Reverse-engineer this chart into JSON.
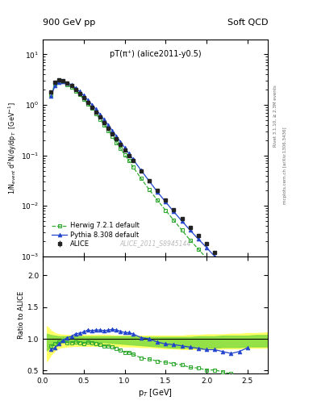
{
  "title_left": "900 GeV pp",
  "title_right": "Soft QCD",
  "plot_title": "pT(π⁺) (alice2011-y0.5)",
  "watermark": "ALICE_2011_S8945144",
  "right_label_top": "Rivet 3.1.10, ≥ 2.3M events",
  "right_label_bottom": "mcplots.cern.ch [arXiv:1306.3436]",
  "xlabel": "p$_{T}$ [GeV]",
  "ylabel_main": "1/N$_{event}$ d$^{2}$N/dy/dp$_{T}$  [GeV$^{-1}$]",
  "ylabel_ratio": "Ratio to ALICE",
  "ylim_main_log": [
    0.001,
    20
  ],
  "ylim_ratio": [
    0.45,
    2.3
  ],
  "ratio_yticks": [
    0.5,
    1.0,
    1.5,
    2.0
  ],
  "xlim": [
    0.0,
    2.75
  ],
  "alice_color": "#222222",
  "herwig_color": "#33aa33",
  "pythia_color": "#2244cc",
  "bg_color": "#ffffff",
  "alice_pt": [
    0.1,
    0.15,
    0.2,
    0.25,
    0.3,
    0.35,
    0.4,
    0.45,
    0.5,
    0.55,
    0.6,
    0.65,
    0.7,
    0.75,
    0.8,
    0.85,
    0.9,
    0.95,
    1.0,
    1.05,
    1.1,
    1.2,
    1.3,
    1.4,
    1.5,
    1.6,
    1.7,
    1.8,
    1.9,
    2.0,
    2.1,
    2.2,
    2.3,
    2.4,
    2.5
  ],
  "alice_val": [
    1.8,
    2.8,
    3.1,
    3.0,
    2.7,
    2.4,
    2.0,
    1.7,
    1.4,
    1.1,
    0.9,
    0.72,
    0.57,
    0.45,
    0.35,
    0.27,
    0.21,
    0.165,
    0.13,
    0.1,
    0.079,
    0.05,
    0.031,
    0.02,
    0.013,
    0.0085,
    0.0056,
    0.0038,
    0.0026,
    0.0018,
    0.0012,
    0.00085,
    0.0006,
    0.00043,
    0.0003
  ],
  "alice_err": [
    0.15,
    0.2,
    0.2,
    0.2,
    0.15,
    0.12,
    0.1,
    0.08,
    0.07,
    0.055,
    0.045,
    0.036,
    0.028,
    0.022,
    0.017,
    0.013,
    0.01,
    0.008,
    0.006,
    0.005,
    0.004,
    0.0025,
    0.0016,
    0.001,
    0.0007,
    0.0004,
    0.0003,
    0.0002,
    0.00014,
    0.0001,
    7e-05,
    5e-05,
    3.5e-05,
    2.5e-05,
    1.8e-05
  ],
  "herwig_pt": [
    0.1,
    0.15,
    0.2,
    0.25,
    0.3,
    0.35,
    0.4,
    0.45,
    0.5,
    0.55,
    0.6,
    0.65,
    0.7,
    0.75,
    0.8,
    0.85,
    0.9,
    0.95,
    1.0,
    1.05,
    1.1,
    1.2,
    1.3,
    1.4,
    1.5,
    1.6,
    1.7,
    1.8,
    1.9,
    2.0,
    2.1,
    2.2,
    2.3,
    2.4,
    2.5,
    2.6
  ],
  "herwig_val": [
    1.6,
    2.6,
    2.95,
    2.9,
    2.55,
    2.25,
    1.9,
    1.6,
    1.3,
    1.05,
    0.85,
    0.67,
    0.52,
    0.4,
    0.31,
    0.235,
    0.178,
    0.136,
    0.103,
    0.079,
    0.06,
    0.035,
    0.021,
    0.013,
    0.0082,
    0.0052,
    0.0033,
    0.0021,
    0.0014,
    0.00092,
    0.00061,
    0.00041,
    0.00027,
    0.00018,
    0.00012,
    8e-05
  ],
  "pythia_pt": [
    0.1,
    0.15,
    0.2,
    0.25,
    0.3,
    0.35,
    0.4,
    0.45,
    0.5,
    0.55,
    0.6,
    0.65,
    0.7,
    0.75,
    0.8,
    0.85,
    0.9,
    0.95,
    1.0,
    1.05,
    1.1,
    1.2,
    1.3,
    1.4,
    1.5,
    1.6,
    1.7,
    1.8,
    1.9,
    2.0,
    2.1,
    2.2,
    2.3,
    2.4,
    2.5
  ],
  "pythia_val": [
    1.5,
    2.4,
    2.85,
    2.95,
    2.75,
    2.5,
    2.15,
    1.85,
    1.55,
    1.25,
    1.02,
    0.82,
    0.65,
    0.51,
    0.4,
    0.31,
    0.24,
    0.185,
    0.143,
    0.11,
    0.085,
    0.051,
    0.031,
    0.019,
    0.012,
    0.0077,
    0.005,
    0.0033,
    0.0022,
    0.0015,
    0.001,
    0.00068,
    0.00046,
    0.00031,
    0.00021
  ],
  "herwig_ratio": [
    0.89,
    0.93,
    0.95,
    0.97,
    0.94,
    0.94,
    0.95,
    0.94,
    0.93,
    0.95,
    0.94,
    0.93,
    0.91,
    0.89,
    0.89,
    0.87,
    0.85,
    0.82,
    0.79,
    0.79,
    0.76,
    0.7,
    0.68,
    0.65,
    0.63,
    0.61,
    0.59,
    0.55,
    0.54,
    0.51,
    0.51,
    0.48,
    0.45,
    0.42,
    0.4,
    0.38
  ],
  "pythia_ratio": [
    0.83,
    0.86,
    0.92,
    0.98,
    1.02,
    1.04,
    1.08,
    1.09,
    1.11,
    1.14,
    1.13,
    1.14,
    1.14,
    1.13,
    1.14,
    1.15,
    1.14,
    1.12,
    1.1,
    1.1,
    1.08,
    1.02,
    1.0,
    0.95,
    0.92,
    0.91,
    0.89,
    0.87,
    0.85,
    0.83,
    0.83,
    0.8,
    0.77,
    0.8,
    0.86
  ],
  "band_x": [
    0.05,
    0.1,
    0.15,
    0.2,
    0.3,
    0.4,
    0.5,
    0.6,
    0.7,
    0.8,
    0.9,
    1.0,
    1.1,
    1.2,
    1.3,
    1.4,
    1.5,
    1.6,
    1.7,
    1.8,
    1.9,
    2.0,
    2.1,
    2.2,
    2.3,
    2.4,
    2.5,
    2.6,
    2.75
  ],
  "green_lo": [
    0.82,
    0.88,
    0.92,
    0.94,
    0.95,
    0.95,
    0.95,
    0.95,
    0.95,
    0.94,
    0.93,
    0.92,
    0.91,
    0.9,
    0.89,
    0.88,
    0.87,
    0.86,
    0.86,
    0.86,
    0.86,
    0.86,
    0.86,
    0.87,
    0.87,
    0.87,
    0.88,
    0.88,
    0.88
  ],
  "green_hi": [
    1.08,
    1.06,
    1.05,
    1.04,
    1.04,
    1.04,
    1.04,
    1.04,
    1.04,
    1.04,
    1.04,
    1.04,
    1.04,
    1.03,
    1.03,
    1.03,
    1.03,
    1.03,
    1.03,
    1.03,
    1.04,
    1.04,
    1.04,
    1.05,
    1.05,
    1.05,
    1.05,
    1.06,
    1.06
  ],
  "yellow_lo": [
    0.65,
    0.75,
    0.82,
    0.86,
    0.88,
    0.89,
    0.89,
    0.89,
    0.89,
    0.89,
    0.89,
    0.88,
    0.88,
    0.87,
    0.87,
    0.86,
    0.85,
    0.85,
    0.84,
    0.84,
    0.84,
    0.84,
    0.84,
    0.85,
    0.85,
    0.85,
    0.86,
    0.86,
    0.86
  ],
  "yellow_hi": [
    1.2,
    1.13,
    1.09,
    1.07,
    1.06,
    1.06,
    1.06,
    1.06,
    1.06,
    1.06,
    1.05,
    1.05,
    1.05,
    1.05,
    1.05,
    1.05,
    1.05,
    1.05,
    1.05,
    1.06,
    1.06,
    1.07,
    1.07,
    1.07,
    1.08,
    1.08,
    1.09,
    1.09,
    1.1
  ]
}
